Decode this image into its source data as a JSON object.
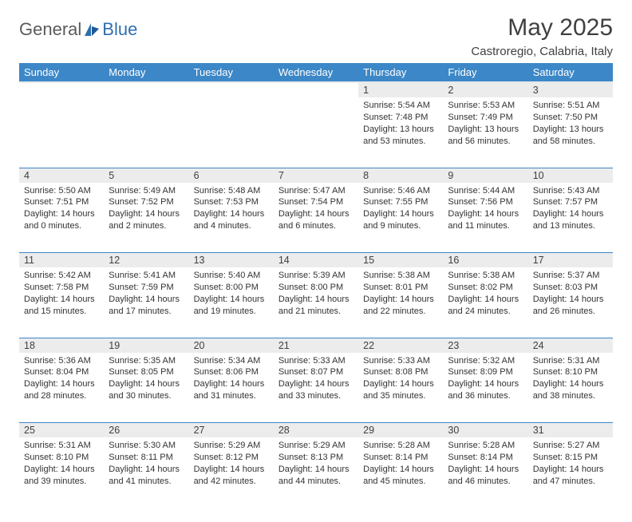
{
  "brand": {
    "text1": "General",
    "text2": "Blue"
  },
  "title": "May 2025",
  "location": "Castroregio, Calabria, Italy",
  "colors": {
    "header_bg": "#3c87c7",
    "header_text": "#ffffff",
    "daynum_bg": "#ececec",
    "week_divider": "#3c87c7",
    "body_text": "#333333",
    "title_text": "#404040",
    "logo_gray": "#5b5b5b",
    "logo_blue": "#2f6fae"
  },
  "day_headers": [
    "Sunday",
    "Monday",
    "Tuesday",
    "Wednesday",
    "Thursday",
    "Friday",
    "Saturday"
  ],
  "weeks": [
    [
      null,
      null,
      null,
      null,
      {
        "n": "1",
        "sr": "5:54 AM",
        "ss": "7:48 PM",
        "dl": "13 hours and 53 minutes."
      },
      {
        "n": "2",
        "sr": "5:53 AM",
        "ss": "7:49 PM",
        "dl": "13 hours and 56 minutes."
      },
      {
        "n": "3",
        "sr": "5:51 AM",
        "ss": "7:50 PM",
        "dl": "13 hours and 58 minutes."
      }
    ],
    [
      {
        "n": "4",
        "sr": "5:50 AM",
        "ss": "7:51 PM",
        "dl": "14 hours and 0 minutes."
      },
      {
        "n": "5",
        "sr": "5:49 AM",
        "ss": "7:52 PM",
        "dl": "14 hours and 2 minutes."
      },
      {
        "n": "6",
        "sr": "5:48 AM",
        "ss": "7:53 PM",
        "dl": "14 hours and 4 minutes."
      },
      {
        "n": "7",
        "sr": "5:47 AM",
        "ss": "7:54 PM",
        "dl": "14 hours and 6 minutes."
      },
      {
        "n": "8",
        "sr": "5:46 AM",
        "ss": "7:55 PM",
        "dl": "14 hours and 9 minutes."
      },
      {
        "n": "9",
        "sr": "5:44 AM",
        "ss": "7:56 PM",
        "dl": "14 hours and 11 minutes."
      },
      {
        "n": "10",
        "sr": "5:43 AM",
        "ss": "7:57 PM",
        "dl": "14 hours and 13 minutes."
      }
    ],
    [
      {
        "n": "11",
        "sr": "5:42 AM",
        "ss": "7:58 PM",
        "dl": "14 hours and 15 minutes."
      },
      {
        "n": "12",
        "sr": "5:41 AM",
        "ss": "7:59 PM",
        "dl": "14 hours and 17 minutes."
      },
      {
        "n": "13",
        "sr": "5:40 AM",
        "ss": "8:00 PM",
        "dl": "14 hours and 19 minutes."
      },
      {
        "n": "14",
        "sr": "5:39 AM",
        "ss": "8:00 PM",
        "dl": "14 hours and 21 minutes."
      },
      {
        "n": "15",
        "sr": "5:38 AM",
        "ss": "8:01 PM",
        "dl": "14 hours and 22 minutes."
      },
      {
        "n": "16",
        "sr": "5:38 AM",
        "ss": "8:02 PM",
        "dl": "14 hours and 24 minutes."
      },
      {
        "n": "17",
        "sr": "5:37 AM",
        "ss": "8:03 PM",
        "dl": "14 hours and 26 minutes."
      }
    ],
    [
      {
        "n": "18",
        "sr": "5:36 AM",
        "ss": "8:04 PM",
        "dl": "14 hours and 28 minutes."
      },
      {
        "n": "19",
        "sr": "5:35 AM",
        "ss": "8:05 PM",
        "dl": "14 hours and 30 minutes."
      },
      {
        "n": "20",
        "sr": "5:34 AM",
        "ss": "8:06 PM",
        "dl": "14 hours and 31 minutes."
      },
      {
        "n": "21",
        "sr": "5:33 AM",
        "ss": "8:07 PM",
        "dl": "14 hours and 33 minutes."
      },
      {
        "n": "22",
        "sr": "5:33 AM",
        "ss": "8:08 PM",
        "dl": "14 hours and 35 minutes."
      },
      {
        "n": "23",
        "sr": "5:32 AM",
        "ss": "8:09 PM",
        "dl": "14 hours and 36 minutes."
      },
      {
        "n": "24",
        "sr": "5:31 AM",
        "ss": "8:10 PM",
        "dl": "14 hours and 38 minutes."
      }
    ],
    [
      {
        "n": "25",
        "sr": "5:31 AM",
        "ss": "8:10 PM",
        "dl": "14 hours and 39 minutes."
      },
      {
        "n": "26",
        "sr": "5:30 AM",
        "ss": "8:11 PM",
        "dl": "14 hours and 41 minutes."
      },
      {
        "n": "27",
        "sr": "5:29 AM",
        "ss": "8:12 PM",
        "dl": "14 hours and 42 minutes."
      },
      {
        "n": "28",
        "sr": "5:29 AM",
        "ss": "8:13 PM",
        "dl": "14 hours and 44 minutes."
      },
      {
        "n": "29",
        "sr": "5:28 AM",
        "ss": "8:14 PM",
        "dl": "14 hours and 45 minutes."
      },
      {
        "n": "30",
        "sr": "5:28 AM",
        "ss": "8:14 PM",
        "dl": "14 hours and 46 minutes."
      },
      {
        "n": "31",
        "sr": "5:27 AM",
        "ss": "8:15 PM",
        "dl": "14 hours and 47 minutes."
      }
    ]
  ],
  "labels": {
    "sunrise": "Sunrise:",
    "sunset": "Sunset:",
    "daylight": "Daylight:"
  }
}
